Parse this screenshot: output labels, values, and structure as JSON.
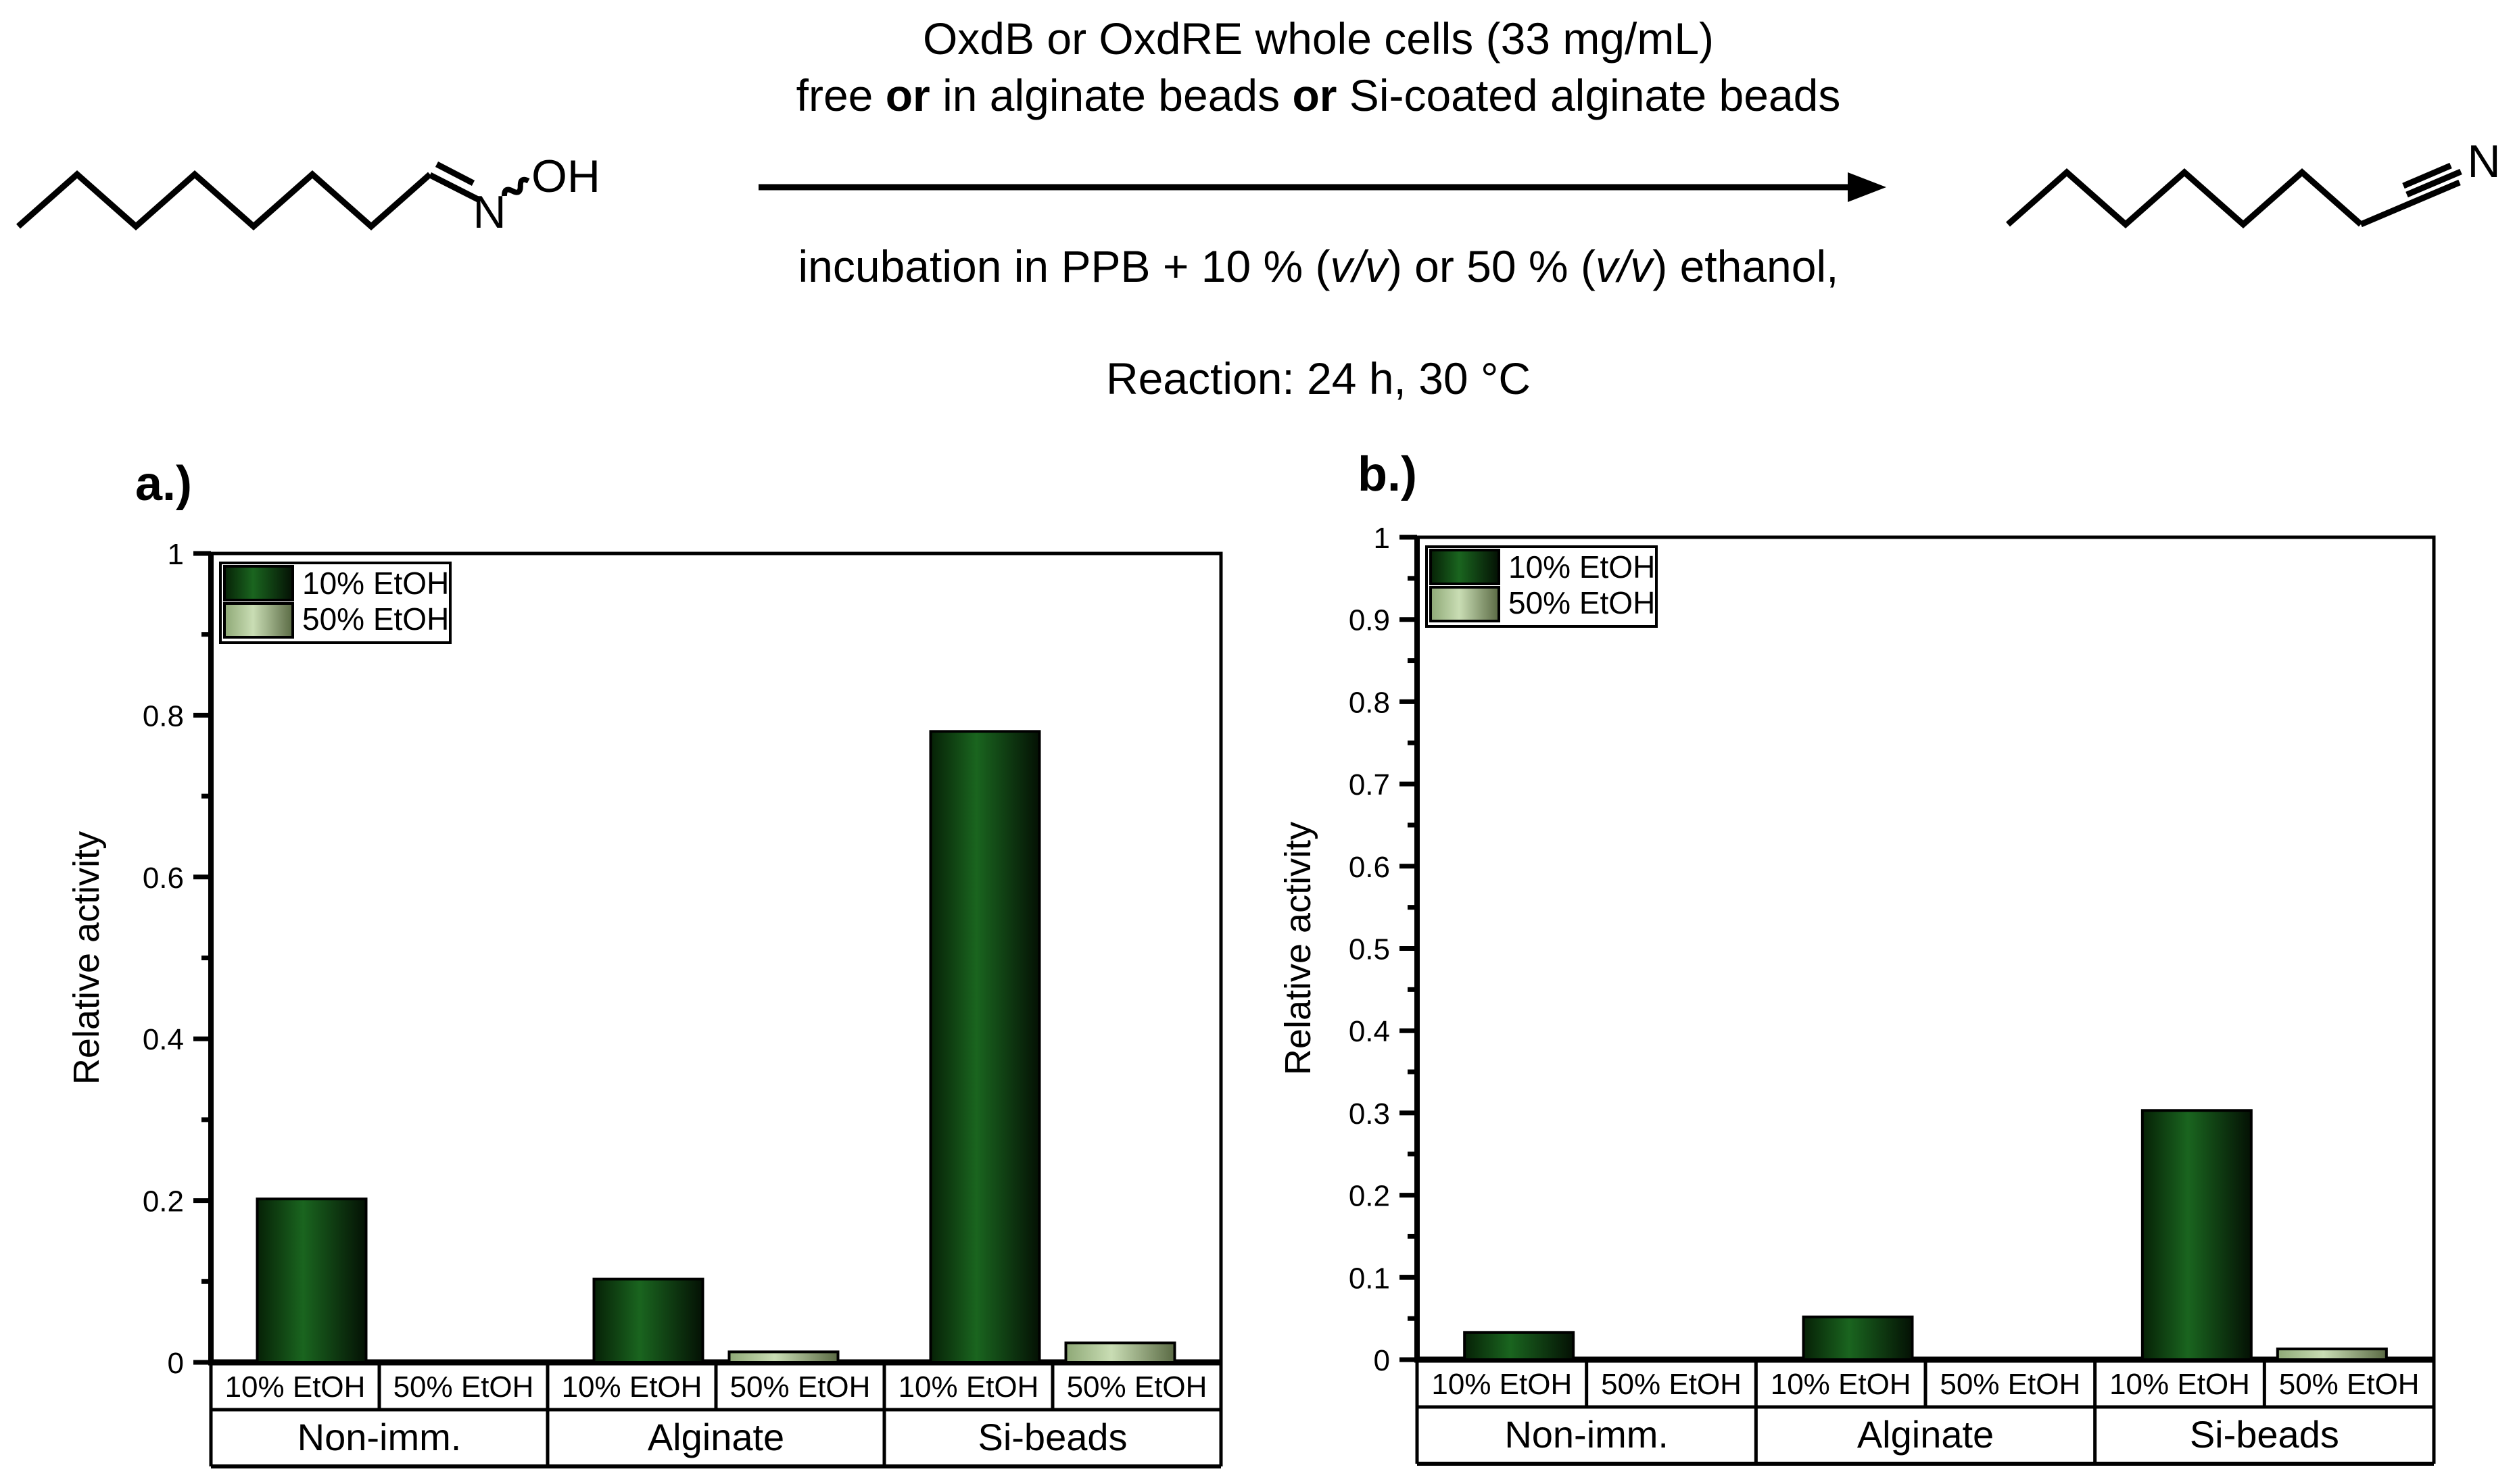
{
  "scheme": {
    "line1": "OxdB or OxdRE whole cells (33 mg/mL)",
    "line2": [
      "free ",
      "or",
      " in alginate beads ",
      "or",
      " Si-coated alginate beads"
    ],
    "line3": [
      "incubation in PPB + 10 % (",
      "v/v",
      ") or 50 % (",
      "v/v",
      ") ethanol,"
    ],
    "line4": "Reaction: 24 h, 30 °C",
    "substrate_labels": {
      "n": "N",
      "oh": "OH"
    },
    "product_labels": {
      "n": "N"
    }
  },
  "chart_data": [
    {
      "type": "bar",
      "panel_label": "a.)",
      "ylabel": "Relative activity",
      "ylim": [
        0,
        1
      ],
      "y_tick_labels": [
        "1",
        "0.8",
        "0.6",
        "0.4",
        "0.2",
        "0"
      ],
      "y_major_step": 0.2,
      "y_minor_step": 0.1,
      "grid": false,
      "legend_position": "top-left",
      "legend": [
        "10% EtOH",
        "50% EtOH"
      ],
      "categories": [
        "Non-imm.",
        "Alginate",
        "Si-beads"
      ],
      "series": [
        {
          "name": "10% EtOH",
          "color": "dark",
          "values": [
            0.202,
            0.103,
            0.78
          ]
        },
        {
          "name": "50% EtOH",
          "color": "light",
          "values": [
            0,
            0.013,
            0.024
          ]
        }
      ]
    },
    {
      "type": "bar",
      "panel_label": "b.)",
      "ylabel": "Relative activity",
      "ylim": [
        0,
        1
      ],
      "y_tick_labels": [
        "1",
        "0.9",
        "0.8",
        "0.7",
        "0.6",
        "0.5",
        "0.4",
        "0.3",
        "0.2",
        "0.1",
        "0"
      ],
      "y_major_step": 0.1,
      "y_minor_step": 0.05,
      "grid": false,
      "legend_position": "top-left",
      "legend": [
        "10% EtOH",
        "50% EtOH"
      ],
      "categories": [
        "Non-imm.",
        "Alginate",
        "Si-beads"
      ],
      "series": [
        {
          "name": "10% EtOH",
          "color": "dark",
          "values": [
            0.033,
            0.052,
            0.303
          ]
        },
        {
          "name": "50% EtOH",
          "color": "light",
          "values": [
            0,
            0,
            0.013
          ]
        }
      ]
    }
  ],
  "colors": {
    "background": "#ffffff",
    "outline": "#000000",
    "bar_dark_stops": [
      "#062106",
      "#1a651f",
      "#041104"
    ],
    "bar_light_stops": [
      "#8ea876",
      "#c9ddb4",
      "#5a6a44"
    ]
  }
}
